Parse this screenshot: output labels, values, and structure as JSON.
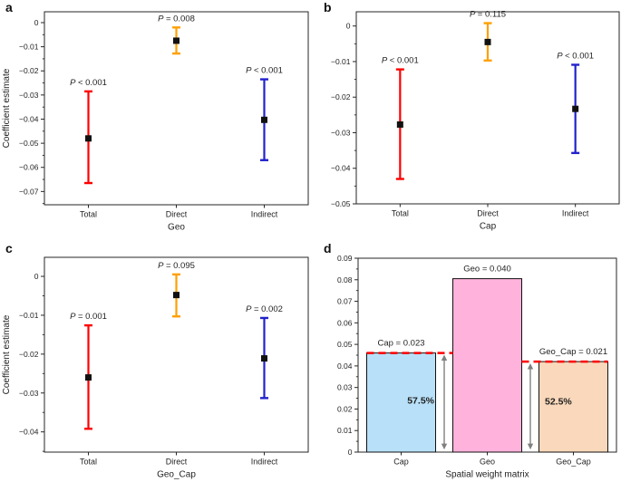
{
  "figure": {
    "background": "#ffffff",
    "text_color": "#1f1f1f",
    "spine_color": "#262626"
  },
  "panel_letters": [
    "a",
    "b",
    "c",
    "d"
  ],
  "chart_data": [
    {
      "panel": "a",
      "type": "scatter",
      "subtype": "errorbar",
      "xlabel": "Geo",
      "ylabel": "Coefficient estimate",
      "ylim": [
        -0.0755,
        0.0045
      ],
      "yticks": [
        0,
        -0.01,
        -0.02,
        -0.03,
        -0.04,
        -0.05,
        -0.06,
        -0.07
      ],
      "ytick_labels": [
        "0",
        "−0.01",
        "−0.02",
        "−0.03",
        "−0.04",
        "−0.05",
        "−0.06",
        "−0.07"
      ],
      "minor_tick_step": 0.005,
      "grid": false,
      "categories": [
        "Total",
        "Direct",
        "Indirect"
      ],
      "series": [
        {
          "category": "Total",
          "value": -0.048,
          "ci_low": -0.0665,
          "ci_high": -0.0285,
          "p_label": "P < 0.001",
          "color": "#ff0000"
        },
        {
          "category": "Direct",
          "value": -0.0075,
          "ci_low": -0.0128,
          "ci_high": -0.002,
          "p_label": "P = 0.008",
          "color": "#ffa000"
        },
        {
          "category": "Indirect",
          "value": -0.0403,
          "ci_low": -0.057,
          "ci_high": -0.0235,
          "p_label": "P < 0.001",
          "color": "#2222cc"
        }
      ],
      "marker": {
        "shape": "square",
        "color": "#111111"
      }
    },
    {
      "panel": "b",
      "type": "scatter",
      "subtype": "errorbar",
      "xlabel": "Cap",
      "ylabel": "",
      "ylim": [
        -0.05,
        0.004
      ],
      "yticks": [
        0,
        -0.01,
        -0.02,
        -0.03,
        -0.04,
        -0.05
      ],
      "ytick_labels": [
        "0",
        "−0.01",
        "−0.02",
        "−0.03",
        "−0.04",
        "−0.05"
      ],
      "minor_tick_step": 0.005,
      "grid": false,
      "categories": [
        "Total",
        "Direct",
        "Indirect"
      ],
      "series": [
        {
          "category": "Total",
          "value": -0.0277,
          "ci_low": -0.043,
          "ci_high": -0.0122,
          "p_label": "P < 0.001",
          "color": "#ff0000"
        },
        {
          "category": "Direct",
          "value": -0.0045,
          "ci_low": -0.0097,
          "ci_high": 0.0008,
          "p_label": "P = 0.115",
          "color": "#ffa000"
        },
        {
          "category": "Indirect",
          "value": -0.0233,
          "ci_low": -0.0357,
          "ci_high": -0.0109,
          "p_label": "P < 0.001",
          "color": "#2222cc"
        }
      ],
      "marker": {
        "shape": "square",
        "color": "#111111"
      }
    },
    {
      "panel": "c",
      "type": "scatter",
      "subtype": "errorbar",
      "xlabel": "Geo_Cap",
      "ylabel": "Coefficient estimate",
      "ylim": [
        -0.0452,
        0.0049
      ],
      "yticks": [
        0,
        -0.01,
        -0.02,
        -0.03,
        -0.04
      ],
      "ytick_labels": [
        "0",
        "−0.01",
        "−0.02",
        "−0.03",
        "−0.04"
      ],
      "minor_tick_step": 0.005,
      "grid": false,
      "categories": [
        "Total",
        "Direct",
        "Indirect"
      ],
      "series": [
        {
          "category": "Total",
          "value": -0.026,
          "ci_low": -0.0392,
          "ci_high": -0.0126,
          "p_label": "P = 0.001",
          "color": "#ff0000"
        },
        {
          "category": "Direct",
          "value": -0.0048,
          "ci_low": -0.0103,
          "ci_high": 0.0005,
          "p_label": "P = 0.095",
          "color": "#ffa000"
        },
        {
          "category": "Indirect",
          "value": -0.0211,
          "ci_low": -0.0313,
          "ci_high": -0.0107,
          "p_label": "P = 0.002",
          "color": "#2222cc"
        }
      ],
      "marker": {
        "shape": "square",
        "color": "#111111"
      }
    },
    {
      "panel": "d",
      "type": "bar",
      "xlabel": "Spatial weight matrix",
      "ylabel": "",
      "ylim": [
        0,
        0.09
      ],
      "yticks": [
        0,
        0.01,
        0.02,
        0.03,
        0.04,
        0.05,
        0.06,
        0.07,
        0.08,
        0.09
      ],
      "ytick_labels": [
        "0",
        "0.01",
        "0.02",
        "0.03",
        "0.04",
        "0.05",
        "0.06",
        "0.07",
        "0.08",
        "0.09"
      ],
      "minor_tick_step": 0.005,
      "grid": false,
      "categories": [
        "Cap",
        "Geo",
        "Geo_Cap"
      ],
      "bars": [
        {
          "category": "Cap",
          "height": 0.046,
          "fill": "#b8e0f8",
          "label": "Cap = 0.023"
        },
        {
          "category": "Geo",
          "height": 0.0805,
          "fill": "#ffb2dc",
          "label": "Geo = 0.040"
        },
        {
          "category": "Geo_Cap",
          "height": 0.042,
          "fill": "#f9d8bb",
          "label": "Geo_Cap = 0.021"
        }
      ],
      "bar_edge_color": "#111111",
      "reference_lines": [
        {
          "value": 0.046,
          "color": "#ff0000",
          "style": "dashed"
        },
        {
          "value": 0.042,
          "color": "#ff0000",
          "style": "dashed"
        }
      ],
      "arrows": [
        {
          "between": [
            "Cap",
            "Geo"
          ],
          "top": 0.0452,
          "bottom": 0.0012,
          "percent": "57.5%",
          "percent_y": 0.024,
          "color": "#7f7f7f"
        },
        {
          "between": [
            "Geo",
            "Geo_Cap"
          ],
          "top": 0.0412,
          "bottom": 0.0012,
          "percent": "52.5%",
          "percent_y": 0.0235,
          "color": "#7f7f7f"
        }
      ]
    }
  ]
}
